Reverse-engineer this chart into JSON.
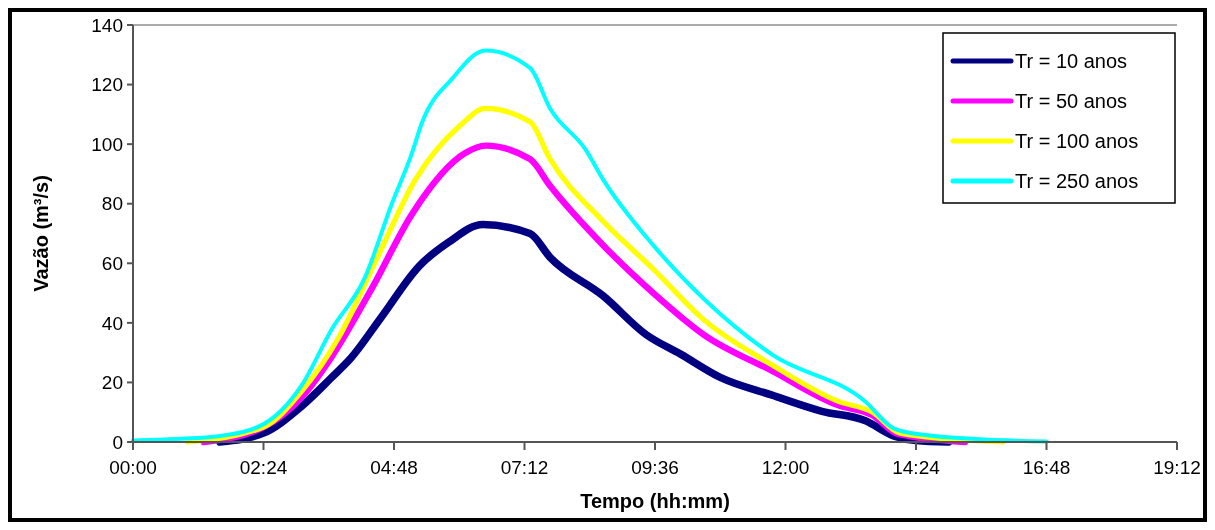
{
  "chart_data": {
    "type": "line",
    "xlabel": "Tempo (hh:mm)",
    "ylabel": "Vazão (m³/s)",
    "xlim": [
      0,
      19.2
    ],
    "ylim": [
      0,
      140
    ],
    "xticks": [
      {
        "value": 0,
        "label": "00:00"
      },
      {
        "value": 2.4,
        "label": "02:24"
      },
      {
        "value": 4.8,
        "label": "04:48"
      },
      {
        "value": 7.2,
        "label": "07:12"
      },
      {
        "value": 9.6,
        "label": "09:36"
      },
      {
        "value": 12,
        "label": "12:00"
      },
      {
        "value": 14.4,
        "label": "14:24"
      },
      {
        "value": 16.8,
        "label": "16:48"
      },
      {
        "value": 19.2,
        "label": "19:12"
      }
    ],
    "yticks": [
      0,
      20,
      40,
      60,
      80,
      100,
      120,
      140
    ],
    "legend": "top right",
    "grid": false,
    "marker": "none",
    "line_style": "solid",
    "series": [
      {
        "name": "Tr = 10 anos",
        "color": "#000080",
        "x": [
          1.6,
          2.4,
          3.1,
          3.65,
          4.0,
          4.57,
          5.26,
          5.8,
          6.43,
          7.3,
          7.67,
          8.65,
          9.44,
          10.07,
          10.81,
          11.74,
          12.67,
          13.46,
          14.0,
          14.4,
          15.0
        ],
        "values": [
          0,
          3,
          12,
          21.6,
          28,
          42,
          59,
          67,
          73,
          70,
          62,
          49,
          36,
          29.5,
          21.6,
          15.8,
          10.3,
          7.2,
          2,
          0.5,
          0
        ]
      },
      {
        "name": "Tr = 50 anos",
        "color": "#ff00ff",
        "x": [
          1.3,
          2.4,
          3.1,
          3.65,
          4.39,
          5.13,
          6.11,
          6.48,
          7.3,
          7.67,
          8.65,
          9.57,
          10.5,
          11.74,
          12.96,
          13.6,
          14.07,
          15.3
        ],
        "values": [
          0,
          5,
          15,
          28.5,
          51.5,
          76.5,
          97,
          99.5,
          95,
          86,
          66,
          50,
          36,
          24,
          12.4,
          9,
          2.7,
          0
        ]
      },
      {
        "name": "Tr = 100 anos",
        "color": "#ffff00",
        "x": [
          1.0,
          2.4,
          3.1,
          3.78,
          4.52,
          5.19,
          6.0,
          6.48,
          7.3,
          7.67,
          8.65,
          9.57,
          10.5,
          11.74,
          12.96,
          13.6,
          14.1,
          15.0,
          16.0
        ],
        "values": [
          0,
          5,
          17,
          35,
          63,
          88,
          106,
          112,
          107.5,
          95,
          74,
          58,
          41,
          26,
          13.7,
          10,
          3,
          1,
          0
        ]
      },
      {
        "name": "Tr = 250 anos",
        "color": "#00ffff",
        "x": [
          0,
          0.8,
          1.6,
          2.4,
          3.1,
          3.65,
          4.26,
          4.76,
          5.13,
          5.31,
          5.87,
          6.48,
          7.3,
          7.67,
          8.33,
          8.65,
          9.57,
          10.5,
          11.74,
          13.46,
          14.0,
          14.5,
          15.5,
          16.8
        ],
        "values": [
          0.5,
          1,
          2,
          6,
          19,
          37.7,
          55,
          80,
          97,
          107,
          122,
          131.4,
          125.6,
          112,
          98,
          88,
          66,
          48,
          29.5,
          13.7,
          4.5,
          2.5,
          1,
          0.2
        ]
      }
    ]
  }
}
